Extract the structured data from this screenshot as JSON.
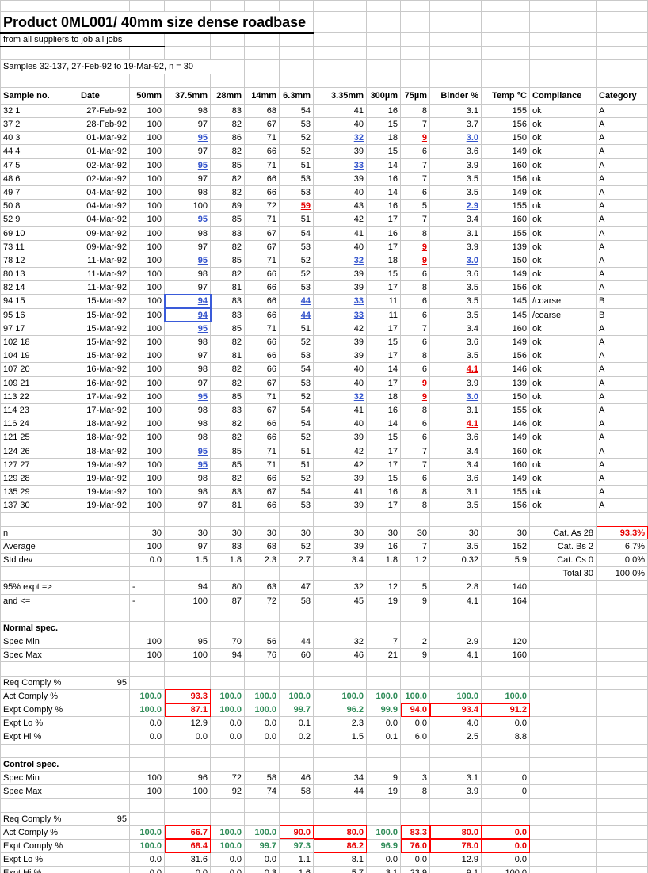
{
  "header": {
    "title": "Product 0ML001/ 40mm size dense roadbase",
    "subtitle": "from all suppliers to job all jobs",
    "samples_line": "Samples 32-137, 27-Feb-92 to 19-Mar-92, n = 30"
  },
  "colors": {
    "flag_blue": "#3353cb",
    "flag_red": "#e60000",
    "comply_green": "#2e8b57",
    "box_red": "#ff0000",
    "selection_blue": "#3a5bd9",
    "gridline": "#c9c9c9"
  },
  "sheet": {
    "columns": [
      "Sample no.",
      "Date",
      "50mm",
      "37.5mm",
      "28mm",
      "14mm",
      "6.3mm",
      "3.35mm",
      "300µm",
      "75µm",
      "Binder %",
      "Temp °C",
      "Compliance",
      "Category"
    ],
    "rows": [
      {
        "sample": "32 1",
        "date": "27-Feb-92",
        "values": [
          "100",
          "98",
          "83",
          "68",
          "54",
          "41",
          "16",
          "8",
          "3.1",
          "155"
        ],
        "compliance": "ok",
        "category": "A",
        "styles": {}
      },
      {
        "sample": "37 2",
        "date": "28-Feb-92",
        "values": [
          "100",
          "97",
          "82",
          "67",
          "53",
          "40",
          "15",
          "7",
          "3.7",
          "156"
        ],
        "compliance": "ok",
        "category": "A",
        "styles": {}
      },
      {
        "sample": "40 3",
        "date": "01-Mar-92",
        "values": [
          "100",
          "95",
          "86",
          "71",
          "52",
          "32",
          "18",
          "9",
          "3.0",
          "150"
        ],
        "compliance": "ok",
        "category": "A",
        "styles": {
          "1": "b",
          "5": "b",
          "7": "r",
          "8": "b"
        }
      },
      {
        "sample": "44 4",
        "date": "01-Mar-92",
        "values": [
          "100",
          "97",
          "82",
          "66",
          "52",
          "39",
          "15",
          "6",
          "3.6",
          "149"
        ],
        "compliance": "ok",
        "category": "A",
        "styles": {}
      },
      {
        "sample": "47 5",
        "date": "02-Mar-92",
        "values": [
          "100",
          "95",
          "85",
          "71",
          "51",
          "33",
          "14",
          "7",
          "3.9",
          "160"
        ],
        "compliance": "ok",
        "category": "A",
        "styles": {
          "1": "b",
          "5": "b"
        }
      },
      {
        "sample": "48 6",
        "date": "02-Mar-92",
        "values": [
          "100",
          "97",
          "82",
          "66",
          "53",
          "39",
          "16",
          "7",
          "3.5",
          "156"
        ],
        "compliance": "ok",
        "category": "A",
        "styles": {}
      },
      {
        "sample": "49 7",
        "date": "04-Mar-92",
        "values": [
          "100",
          "98",
          "82",
          "66",
          "53",
          "40",
          "14",
          "6",
          "3.5",
          "149"
        ],
        "compliance": "ok",
        "category": "A",
        "styles": {}
      },
      {
        "sample": "50 8",
        "date": "04-Mar-92",
        "values": [
          "100",
          "100",
          "89",
          "72",
          "59",
          "43",
          "16",
          "5",
          "2.9",
          "155"
        ],
        "compliance": "ok",
        "category": "A",
        "styles": {
          "4": "r",
          "8": "b"
        }
      },
      {
        "sample": "52 9",
        "date": "04-Mar-92",
        "values": [
          "100",
          "95",
          "85",
          "71",
          "51",
          "42",
          "17",
          "7",
          "3.4",
          "160"
        ],
        "compliance": "ok",
        "category": "A",
        "styles": {
          "1": "b"
        }
      },
      {
        "sample": "69 10",
        "date": "09-Mar-92",
        "values": [
          "100",
          "98",
          "83",
          "67",
          "54",
          "41",
          "16",
          "8",
          "3.1",
          "155"
        ],
        "compliance": "ok",
        "category": "A",
        "styles": {}
      },
      {
        "sample": "73 11",
        "date": "09-Mar-92",
        "values": [
          "100",
          "97",
          "82",
          "67",
          "53",
          "40",
          "17",
          "9",
          "3.9",
          "139"
        ],
        "compliance": "ok",
        "category": "A",
        "styles": {
          "7": "r"
        }
      },
      {
        "sample": "78 12",
        "date": "11-Mar-92",
        "values": [
          "100",
          "95",
          "85",
          "71",
          "52",
          "32",
          "18",
          "9",
          "3.0",
          "150"
        ],
        "compliance": "ok",
        "category": "A",
        "styles": {
          "1": "b",
          "5": "b",
          "7": "r",
          "8": "b"
        }
      },
      {
        "sample": "80 13",
        "date": "11-Mar-92",
        "values": [
          "100",
          "98",
          "82",
          "66",
          "52",
          "39",
          "15",
          "6",
          "3.6",
          "149"
        ],
        "compliance": "ok",
        "category": "A",
        "styles": {}
      },
      {
        "sample": "82 14",
        "date": "11-Mar-92",
        "values": [
          "100",
          "97",
          "81",
          "66",
          "53",
          "39",
          "17",
          "8",
          "3.5",
          "156"
        ],
        "compliance": "ok",
        "category": "A",
        "styles": {}
      },
      {
        "sample": "94 15",
        "date": "15-Mar-92",
        "values": [
          "100",
          "94",
          "83",
          "66",
          "44",
          "33",
          "11",
          "6",
          "3.5",
          "145"
        ],
        "compliance": "/coarse",
        "category": "B",
        "styles": {
          "1": "B",
          "4": "b",
          "5": "b"
        }
      },
      {
        "sample": "95 16",
        "date": "15-Mar-92",
        "values": [
          "100",
          "94",
          "83",
          "66",
          "44",
          "33",
          "11",
          "6",
          "3.5",
          "145"
        ],
        "compliance": "/coarse",
        "category": "B",
        "styles": {
          "1": "B",
          "4": "b",
          "5": "b"
        }
      },
      {
        "sample": "97 17",
        "date": "15-Mar-92",
        "values": [
          "100",
          "95",
          "85",
          "71",
          "51",
          "42",
          "17",
          "7",
          "3.4",
          "160"
        ],
        "compliance": "ok",
        "category": "A",
        "styles": {
          "1": "b"
        }
      },
      {
        "sample": "102 18",
        "date": "15-Mar-92",
        "values": [
          "100",
          "98",
          "82",
          "66",
          "52",
          "39",
          "15",
          "6",
          "3.6",
          "149"
        ],
        "compliance": "ok",
        "category": "A",
        "styles": {}
      },
      {
        "sample": "104 19",
        "date": "15-Mar-92",
        "values": [
          "100",
          "97",
          "81",
          "66",
          "53",
          "39",
          "17",
          "8",
          "3.5",
          "156"
        ],
        "compliance": "ok",
        "category": "A",
        "styles": {}
      },
      {
        "sample": "107 20",
        "date": "16-Mar-92",
        "values": [
          "100",
          "98",
          "82",
          "66",
          "54",
          "40",
          "14",
          "6",
          "4.1",
          "146"
        ],
        "compliance": "ok",
        "category": "A",
        "styles": {
          "8": "r"
        }
      },
      {
        "sample": "109 21",
        "date": "16-Mar-92",
        "values": [
          "100",
          "97",
          "82",
          "67",
          "53",
          "40",
          "17",
          "9",
          "3.9",
          "139"
        ],
        "compliance": "ok",
        "category": "A",
        "styles": {
          "7": "r"
        }
      },
      {
        "sample": "113 22",
        "date": "17-Mar-92",
        "values": [
          "100",
          "95",
          "85",
          "71",
          "52",
          "32",
          "18",
          "9",
          "3.0",
          "150"
        ],
        "compliance": "ok",
        "category": "A",
        "styles": {
          "1": "b",
          "5": "b",
          "7": "r",
          "8": "b"
        }
      },
      {
        "sample": "114 23",
        "date": "17-Mar-92",
        "values": [
          "100",
          "98",
          "83",
          "67",
          "54",
          "41",
          "16",
          "8",
          "3.1",
          "155"
        ],
        "compliance": "ok",
        "category": "A",
        "styles": {}
      },
      {
        "sample": "116 24",
        "date": "18-Mar-92",
        "values": [
          "100",
          "98",
          "82",
          "66",
          "54",
          "40",
          "14",
          "6",
          "4.1",
          "146"
        ],
        "compliance": "ok",
        "category": "A",
        "styles": {
          "8": "r"
        }
      },
      {
        "sample": "121 25",
        "date": "18-Mar-92",
        "values": [
          "100",
          "98",
          "82",
          "66",
          "52",
          "39",
          "15",
          "6",
          "3.6",
          "149"
        ],
        "compliance": "ok",
        "category": "A",
        "styles": {}
      },
      {
        "sample": "124 26",
        "date": "18-Mar-92",
        "values": [
          "100",
          "95",
          "85",
          "71",
          "51",
          "42",
          "17",
          "7",
          "3.4",
          "160"
        ],
        "compliance": "ok",
        "category": "A",
        "styles": {
          "1": "b"
        }
      },
      {
        "sample": "127 27",
        "date": "19-Mar-92",
        "values": [
          "100",
          "95",
          "85",
          "71",
          "51",
          "42",
          "17",
          "7",
          "3.4",
          "160"
        ],
        "compliance": "ok",
        "category": "A",
        "styles": {
          "1": "b"
        }
      },
      {
        "sample": "129 28",
        "date": "19-Mar-92",
        "values": [
          "100",
          "98",
          "82",
          "66",
          "52",
          "39",
          "15",
          "6",
          "3.6",
          "149"
        ],
        "compliance": "ok",
        "category": "A",
        "styles": {}
      },
      {
        "sample": "135 29",
        "date": "19-Mar-92",
        "values": [
          "100",
          "98",
          "83",
          "67",
          "54",
          "41",
          "16",
          "8",
          "3.1",
          "155"
        ],
        "compliance": "ok",
        "category": "A",
        "styles": {}
      },
      {
        "sample": "137 30",
        "date": "19-Mar-92",
        "values": [
          "100",
          "97",
          "81",
          "66",
          "53",
          "39",
          "17",
          "8",
          "3.5",
          "156"
        ],
        "compliance": "ok",
        "category": "A",
        "styles": {}
      }
    ],
    "summary": {
      "n": {
        "label": "n",
        "values": [
          "30",
          "30",
          "30",
          "30",
          "30",
          "30",
          "30",
          "30",
          "30",
          "30"
        ]
      },
      "average": {
        "label": "Average",
        "values": [
          "100",
          "97",
          "83",
          "68",
          "52",
          "39",
          "16",
          "7",
          "3.5",
          "152"
        ]
      },
      "std_dev": {
        "label": "Std dev",
        "values": [
          "0.0",
          "1.5",
          "1.8",
          "2.3",
          "2.7",
          "3.4",
          "1.8",
          "1.2",
          "0.32",
          "5.9"
        ]
      },
      "expt95_lo": {
        "label": "95% expt =>",
        "values": [
          "-",
          "94",
          "80",
          "63",
          "47",
          "32",
          "12",
          "5",
          "2.8",
          "140"
        ]
      },
      "expt95_hi": {
        "label": " and <=",
        "values": [
          "-",
          "100",
          "87",
          "72",
          "58",
          "45",
          "19",
          "9",
          "4.1",
          "164"
        ]
      },
      "categories": [
        {
          "label": "Cat. As 28",
          "value": "93.3%",
          "style": "redbox"
        },
        {
          "label": "Cat. Bs 2",
          "value": "6.7%",
          "style": ""
        },
        {
          "label": "Cat. Cs 0",
          "value": "0.0%",
          "style": ""
        },
        {
          "label": "Total 30",
          "value": "100.0%",
          "style": ""
        }
      ]
    },
    "normal_spec": {
      "heading": "Normal spec.",
      "spec_min": {
        "label": "Spec Min",
        "values": [
          "100",
          "95",
          "70",
          "56",
          "44",
          "32",
          "7",
          "2",
          "2.9",
          "120"
        ]
      },
      "spec_max": {
        "label": "Spec Max",
        "values": [
          "100",
          "100",
          "94",
          "76",
          "60",
          "46",
          "21",
          "9",
          "4.1",
          "160"
        ]
      },
      "req_comply": {
        "label": "Req Comply %",
        "value": "95"
      },
      "act_comply": {
        "label": "Act Comply %",
        "values": [
          "100.0",
          "93.3",
          "100.0",
          "100.0",
          "100.0",
          "100.0",
          "100.0",
          "100.0",
          "100.0",
          "100.0"
        ],
        "styles": [
          "g",
          "rb",
          "g",
          "g",
          "g",
          "g",
          "g",
          "g",
          "g",
          "g"
        ]
      },
      "expt_comply": {
        "label": "Expt Comply %",
        "values": [
          "100.0",
          "87.1",
          "100.0",
          "100.0",
          "99.7",
          "96.2",
          "99.9",
          "94.0",
          "93.4",
          "91.2"
        ],
        "styles": [
          "g",
          "rb",
          "g",
          "g",
          "g",
          "g",
          "g",
          "rb",
          "rb",
          "rb"
        ]
      },
      "expt_lo": {
        "label": "Expt Lo %",
        "values": [
          "0.0",
          "12.9",
          "0.0",
          "0.0",
          "0.1",
          "2.3",
          "0.0",
          "0.0",
          "4.0",
          "0.0"
        ]
      },
      "expt_hi": {
        "label": "Expt Hi %",
        "values": [
          "0.0",
          "0.0",
          "0.0",
          "0.0",
          "0.2",
          "1.5",
          "0.1",
          "6.0",
          "2.5",
          "8.8"
        ]
      }
    },
    "control_spec": {
      "heading": "Control spec.",
      "spec_min": {
        "label": "Spec Min",
        "values": [
          "100",
          "96",
          "72",
          "58",
          "46",
          "34",
          "9",
          "3",
          "3.1",
          "0"
        ]
      },
      "spec_max": {
        "label": "Spec Max",
        "values": [
          "100",
          "100",
          "92",
          "74",
          "58",
          "44",
          "19",
          "8",
          "3.9",
          "0"
        ]
      },
      "req_comply": {
        "label": "Req Comply %",
        "value": "95"
      },
      "act_comply": {
        "label": "Act Comply %",
        "values": [
          "100.0",
          "66.7",
          "100.0",
          "100.0",
          "90.0",
          "80.0",
          "100.0",
          "83.3",
          "80.0",
          "0.0"
        ],
        "styles": [
          "g",
          "rb",
          "g",
          "g",
          "rb",
          "rb",
          "g",
          "rb",
          "rb",
          "rb"
        ]
      },
      "expt_comply": {
        "label": "Expt Comply %",
        "values": [
          "100.0",
          "68.4",
          "100.0",
          "99.7",
          "97.3",
          "86.2",
          "96.9",
          "76.0",
          "78.0",
          "0.0"
        ],
        "styles": [
          "g",
          "rb",
          "g",
          "g",
          "g",
          "rb",
          "g",
          "rb",
          "rb",
          "rb"
        ]
      },
      "expt_lo": {
        "label": "Expt Lo %",
        "values": [
          "0.0",
          "31.6",
          "0.0",
          "0.0",
          "1.1",
          "8.1",
          "0.0",
          "0.0",
          "12.9",
          "0.0"
        ]
      },
      "expt_hi": {
        "label": "Expt Hi %",
        "values": [
          "0.0",
          "0.0",
          "0.0",
          "0.3",
          "1.6",
          "5.7",
          "3.1",
          "23.9",
          "9.1",
          "100.0"
        ]
      }
    }
  }
}
